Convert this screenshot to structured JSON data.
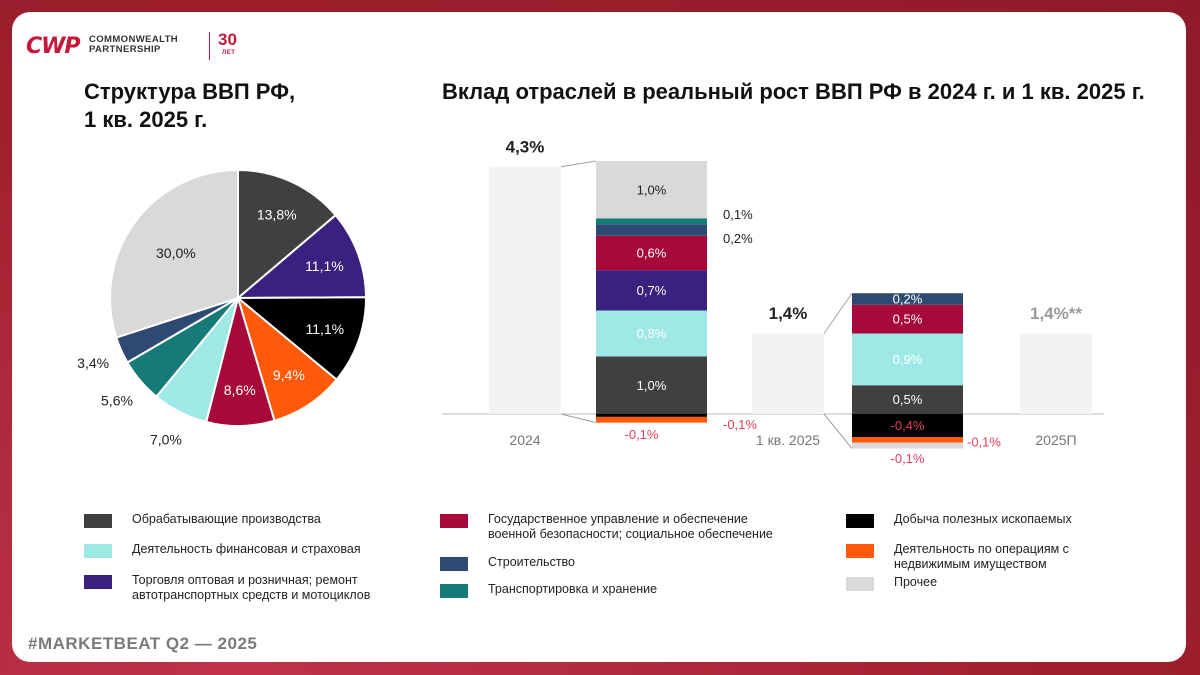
{
  "logo": {
    "mark": "CWP",
    "line1": "COMMONWEALTH",
    "line2": "PARTNERSHIP",
    "years": "30",
    "years_sub": "ЛЕТ"
  },
  "footer": "#MARKETBEAT Q2  —  2025",
  "colors": {
    "manufacturing": "#404040",
    "finance": "#9ee9e6",
    "trade": "#3a2180",
    "government": "#a6093a",
    "construction": "#2e4a73",
    "transport": "#167a78",
    "mining": "#000000",
    "realestate": "#ff5a0a",
    "other": "#d9d9d9",
    "total": "#f2f2f2",
    "negative": "#e0405a"
  },
  "legend": {
    "col1": [
      {
        "key": "manufacturing",
        "label": "Обрабатывающие производства"
      },
      {
        "key": "finance",
        "label": "Деятельность финансовая и страховая"
      },
      {
        "key": "trade",
        "label": "Торговля оптовая и розничная; ремонт автотранспортных средств и мотоциклов"
      }
    ],
    "col2": [
      {
        "key": "government",
        "label": "Государственное управление и обеспечение военной безопасности; социальное обеспечение"
      },
      {
        "key": "construction",
        "label": "Строительство"
      },
      {
        "key": "transport",
        "label": "Транспортировка и хранение"
      }
    ],
    "col3": [
      {
        "key": "mining",
        "label": "Добыча полезных ископаемых"
      },
      {
        "key": "realestate",
        "label": "Деятельность по операциям с недвижимым имуществом"
      },
      {
        "key": "other",
        "label": "Прочее"
      }
    ]
  },
  "chart_data": [
    {
      "type": "pie",
      "title": "Структура  ВВП РФ, 1 кв. 2025 г.",
      "title_lines": [
        "Структура  ВВП РФ,",
        "1 кв. 2025 г."
      ],
      "unit": "%",
      "slices": [
        {
          "key": "manufacturing",
          "value": 13.8,
          "label": "13,8%"
        },
        {
          "key": "trade",
          "value": 11.1,
          "label": "11,1%"
        },
        {
          "key": "mining",
          "value": 11.1,
          "label": "11,1%"
        },
        {
          "key": "realestate",
          "value": 9.4,
          "label": "9,4%"
        },
        {
          "key": "government",
          "value": 8.6,
          "label": "8,6%"
        },
        {
          "key": "finance",
          "value": 7.0,
          "label": "7,0%"
        },
        {
          "key": "transport",
          "value": 5.6,
          "label": "5,6%"
        },
        {
          "key": "construction",
          "value": 3.4,
          "label": "3,4%"
        },
        {
          "key": "other",
          "value": 30.0,
          "label": "30,0%"
        }
      ]
    },
    {
      "type": "bar",
      "title": "Вклад отраслей в реальный рост ВВП РФ в 2024 г. и 1 кв. 2025 г.",
      "unit": "п.п.",
      "ylim": [
        -0.5,
        4.5
      ],
      "totals": [
        {
          "category": "2024",
          "value": 4.3,
          "label": "4,3%"
        },
        {
          "category": "1 кв. 2025",
          "value": 1.4,
          "label": "1,4%"
        },
        {
          "category": "2025П",
          "value": 1.4,
          "label": "1,4%**"
        }
      ],
      "breakdowns": [
        {
          "period": "2024",
          "segments": [
            {
              "key": "mining",
              "value": -0.05,
              "label": ""
            },
            {
              "key": "realestate",
              "value": -0.1,
              "label": "-0,1%"
            },
            {
              "key": "manufacturing",
              "value": 1.0,
              "label": "1,0%"
            },
            {
              "key": "finance",
              "value": 0.8,
              "label": "0,8%"
            },
            {
              "key": "trade",
              "value": 0.7,
              "label": "0,7%"
            },
            {
              "key": "government",
              "value": 0.6,
              "label": "0,6%"
            },
            {
              "key": "construction",
              "value": 0.2,
              "label": "0,2%"
            },
            {
              "key": "transport",
              "value": 0.1,
              "label": "0,1%"
            },
            {
              "key": "other",
              "value": 1.0,
              "label": "1,0%"
            }
          ],
          "extra_label": "-0,1%"
        },
        {
          "period": "1 кв. 2025",
          "segments": [
            {
              "key": "mining",
              "value": -0.4,
              "label": "-0,4%"
            },
            {
              "key": "realestate",
              "value": -0.1,
              "label": "-0,1%"
            },
            {
              "key": "other",
              "value": -0.1,
              "label": "-0,1%"
            },
            {
              "key": "manufacturing",
              "value": 0.5,
              "label": "0,5%"
            },
            {
              "key": "finance",
              "value": 0.9,
              "label": "0,9%"
            },
            {
              "key": "government",
              "value": 0.5,
              "label": "0,5%"
            },
            {
              "key": "construction",
              "value": 0.2,
              "label": "0,2%"
            }
          ]
        }
      ]
    }
  ]
}
